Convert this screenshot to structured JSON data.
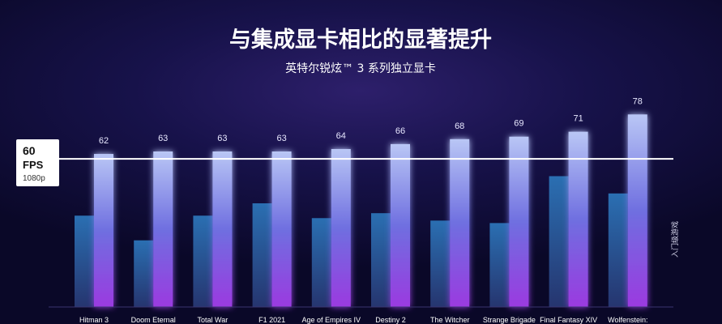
{
  "header": {
    "title": "与集成显卡相比的显著提升",
    "subtitle": "英特尔锐炫™ 3 系列独立显卡"
  },
  "reference": {
    "fps_label": "60",
    "fps_unit": "FPS",
    "resolution": "1080p"
  },
  "side_label": "入门级游戏",
  "colors": {
    "integrated_bar_top": "#2a6fb2",
    "integrated_bar_bottom": "#26356f",
    "arc_bar_top": "#b9c6f5",
    "arc_bar_mid": "#6f6fe0",
    "arc_bar_bottom": "#9b3ae0",
    "reference_line": "#ffffff"
  },
  "chart_data": {
    "type": "bar",
    "reference_line": 60,
    "categories": [
      "Hitman 3",
      "Doom Eternal",
      "Total War",
      "F1 2021",
      "Age of Empires IV",
      "Destiny 2",
      "The Witcher",
      "Strange Brigade",
      "Final Fantasy XIV",
      "Wolfenstein:"
    ],
    "series": [
      {
        "values": [
          37,
          27,
          37,
          42,
          36,
          38,
          35,
          34,
          53,
          46
        ]
      },
      {
        "values": [
          62,
          63,
          63,
          63,
          64,
          66,
          68,
          69,
          71,
          78
        ],
        "show_labels": true
      }
    ],
    "ylim": [
      0,
      84
    ]
  }
}
